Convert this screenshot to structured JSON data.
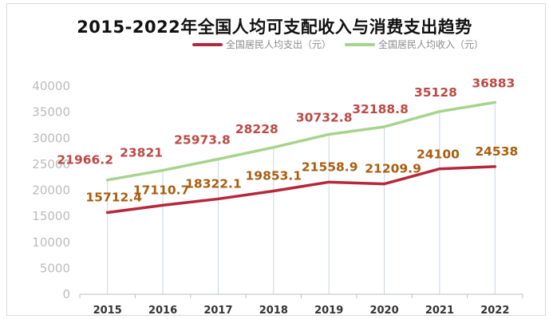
{
  "chart_data": {
    "type": "line",
    "title": "2015-2022年全国人均可支配收入与消费支出趋势",
    "categories": [
      "2015",
      "2016",
      "2017",
      "2018",
      "2019",
      "2020",
      "2021",
      "2022"
    ],
    "ylim": [
      0,
      40000
    ],
    "yticks": [
      0,
      5000,
      10000,
      15000,
      20000,
      25000,
      30000,
      35000,
      40000
    ],
    "grid": false,
    "legend_position": "top",
    "series": [
      {
        "name": "全国居民人均支出（元）",
        "color": "#b5283a",
        "label_color": "#a85e10",
        "values": [
          15712.4,
          17110.7,
          18322.1,
          19853.1,
          21558.9,
          21209.9,
          24100,
          24538
        ],
        "labels": [
          "15712.4",
          "17110.7",
          "18322.1",
          "19853.1",
          "21558.9",
          "21209.9",
          "24100",
          "24538"
        ]
      },
      {
        "name": "全国居民人均收入（元）",
        "color": "#a6d48c",
        "label_color": "#bb4a45",
        "values": [
          21966.2,
          23821,
          25973.8,
          28228,
          30732.8,
          32188.8,
          35128,
          36883
        ],
        "labels": [
          "21966.2",
          "23821",
          "25973.8",
          "28228",
          "30732.8",
          "32188.8",
          "35128",
          "36883"
        ]
      }
    ]
  }
}
